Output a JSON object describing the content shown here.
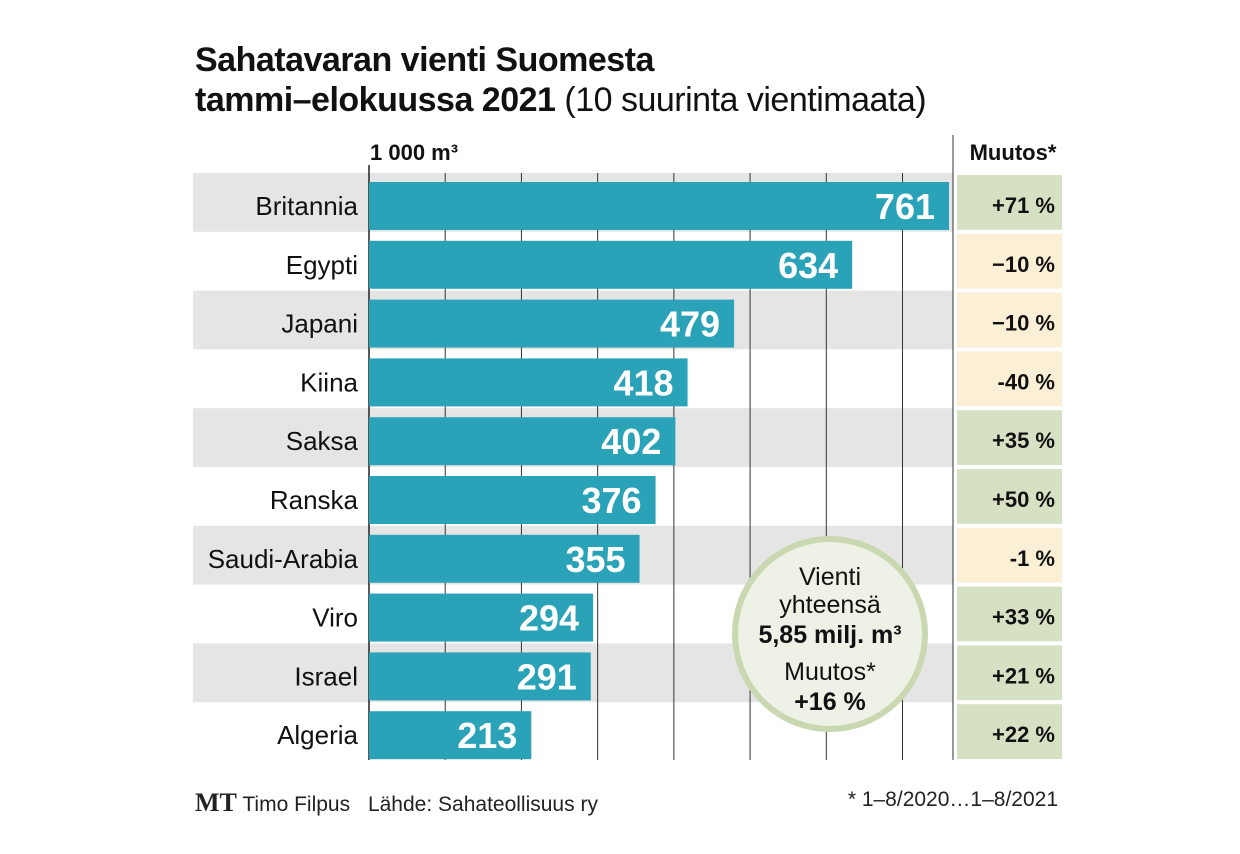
{
  "chart_data": {
    "type": "bar",
    "orientation": "horizontal",
    "title": "Sahatavaran vienti Suomesta",
    "title_line2": "tammi–elokuussa 2021",
    "subtitle": "(10 suurinta vientimaata)",
    "unit_label": "1 000 m³",
    "change_header": "Muutos*",
    "categories": [
      "Britannia",
      "Egypti",
      "Japani",
      "Kiina",
      "Saksa",
      "Ranska",
      "Saudi-Arabia",
      "Viro",
      "Israel",
      "Algeria"
    ],
    "values": [
      761,
      634,
      479,
      418,
      402,
      376,
      355,
      294,
      291,
      213
    ],
    "changes": [
      "+71 %",
      "−10 %",
      "−10 %",
      "-40 %",
      "+35 %",
      "+50 %",
      "-1 %",
      "+33 %",
      "+21 %",
      "+22 %"
    ],
    "xlim": [
      0,
      760
    ],
    "grid_step": 100,
    "grid": true,
    "callout": {
      "line1": "Vienti",
      "line2": "yhteensä",
      "total": "5,85 milj. m³",
      "change_label": "Muutos*",
      "change": "+16 %"
    }
  },
  "footer": {
    "logo": "MT",
    "author": "Timo Filpus",
    "source": "Lähde: Sahateollisuus ry",
    "note": "* 1–8/2020…1–8/2021"
  },
  "colors": {
    "bar": "#2aa3b8",
    "band": "#e5e5e5",
    "positive": "#d6e1c3",
    "negative": "#fbefd5",
    "circle_fill": "#eef2e6",
    "circle_stroke": "#c9d8b0"
  }
}
